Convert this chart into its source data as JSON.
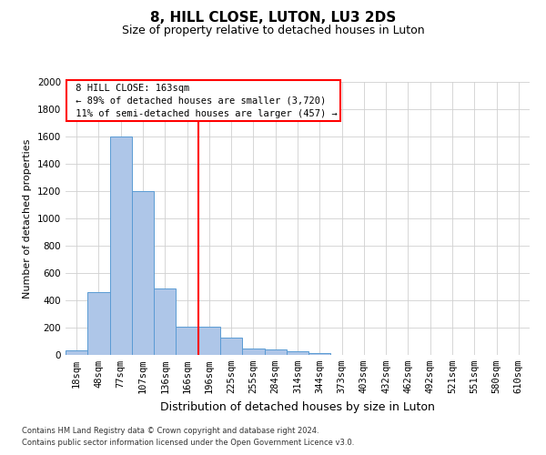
{
  "title": "8, HILL CLOSE, LUTON, LU3 2DS",
  "subtitle": "Size of property relative to detached houses in Luton",
  "xlabel": "Distribution of detached houses by size in Luton",
  "ylabel": "Number of detached properties",
  "bar_labels": [
    "18sqm",
    "48sqm",
    "77sqm",
    "107sqm",
    "136sqm",
    "166sqm",
    "196sqm",
    "225sqm",
    "255sqm",
    "284sqm",
    "314sqm",
    "344sqm",
    "373sqm",
    "403sqm",
    "432sqm",
    "462sqm",
    "492sqm",
    "521sqm",
    "551sqm",
    "580sqm",
    "610sqm"
  ],
  "bar_values": [
    35,
    460,
    1600,
    1200,
    490,
    210,
    210,
    130,
    50,
    40,
    25,
    15,
    0,
    0,
    0,
    0,
    0,
    0,
    0,
    0,
    0
  ],
  "bar_color": "#aec6e8",
  "bar_edge_color": "#5a9bd4",
  "red_line_x": 5.5,
  "annotation_title": "8 HILL CLOSE: 163sqm",
  "annotation_line1": "← 89% of detached houses are smaller (3,720)",
  "annotation_line2": "11% of semi-detached houses are larger (457) →",
  "ylim": [
    0,
    2000
  ],
  "yticks": [
    0,
    200,
    400,
    600,
    800,
    1000,
    1200,
    1400,
    1600,
    1800,
    2000
  ],
  "footnote1": "Contains HM Land Registry data © Crown copyright and database right 2024.",
  "footnote2": "Contains public sector information licensed under the Open Government Licence v3.0.",
  "bg_color": "#ffffff",
  "grid_color": "#d0d0d0",
  "title_fontsize": 11,
  "subtitle_fontsize": 9,
  "ylabel_fontsize": 8,
  "xlabel_fontsize": 9,
  "tick_fontsize": 7.5,
  "annot_fontsize": 7.5
}
